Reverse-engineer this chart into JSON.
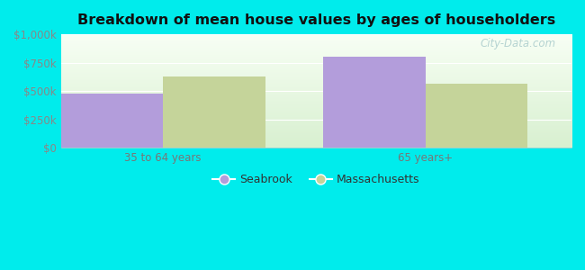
{
  "title": "Breakdown of mean house values by ages of householders",
  "categories": [
    "35 to 64 years",
    "65 years+"
  ],
  "seabrook_values": [
    480000,
    800000
  ],
  "massachusetts_values": [
    630000,
    565000
  ],
  "seabrook_color": "#b39ddb",
  "massachusetts_color": "#c5d49a",
  "ylim": [
    0,
    1000000
  ],
  "yticks": [
    0,
    250000,
    500000,
    750000,
    1000000
  ],
  "ytick_labels": [
    "$0",
    "$250k",
    "$500k",
    "$750k",
    "$1,000k"
  ],
  "legend_labels": [
    "Seabrook",
    "Massachusetts"
  ],
  "background_color": "#00ecec",
  "plot_bg_top": "#f0f8e8",
  "plot_bg_bottom": "#d8f0d0",
  "watermark": "City-Data.com",
  "bar_width": 0.28,
  "x_positions": [
    0.28,
    1.0
  ]
}
